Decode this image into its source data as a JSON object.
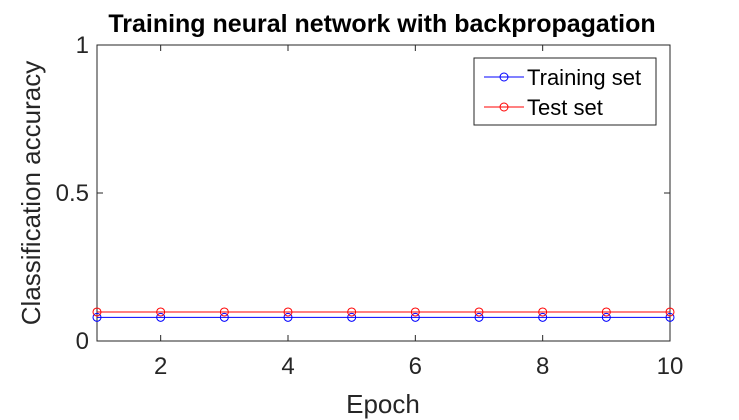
{
  "chart_data": {
    "type": "line",
    "title": "Training neural network with backpropagation",
    "xlabel": "Epoch",
    "ylabel": "Classification accuracy",
    "xlim": [
      1,
      10
    ],
    "ylim": [
      0,
      1
    ],
    "xticks": [
      2,
      4,
      6,
      8,
      10
    ],
    "xtick_labels": [
      "2",
      "4",
      "6",
      "8",
      "10"
    ],
    "yticks": [
      0,
      0.5,
      1
    ],
    "ytick_labels": [
      "0",
      "0.5",
      "1"
    ],
    "grid": false,
    "legend_position": "top-right",
    "x": [
      1,
      2,
      3,
      4,
      5,
      6,
      7,
      8,
      9,
      10
    ],
    "series": [
      {
        "name": "Training set",
        "color": "#0000ff",
        "marker": "circle",
        "values": [
          0.08,
          0.08,
          0.08,
          0.08,
          0.08,
          0.08,
          0.08,
          0.08,
          0.08,
          0.08
        ]
      },
      {
        "name": "Test set",
        "color": "#ff0000",
        "marker": "circle",
        "values": [
          0.098,
          0.098,
          0.098,
          0.098,
          0.098,
          0.098,
          0.098,
          0.098,
          0.098,
          0.098
        ]
      }
    ]
  }
}
